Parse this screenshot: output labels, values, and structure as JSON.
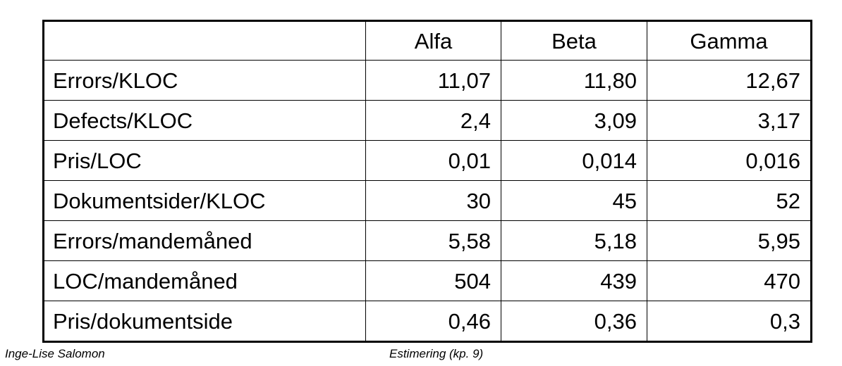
{
  "table": {
    "columns": [
      "",
      "Alfa",
      "Beta",
      "Gamma"
    ],
    "rows": [
      {
        "label": "Errors/KLOC",
        "values": [
          "11,07",
          "11,80",
          "12,67"
        ]
      },
      {
        "label": "Defects/KLOC",
        "values": [
          "2,4",
          "3,09",
          "3,17"
        ]
      },
      {
        "label": "Pris/LOC",
        "values": [
          "0,01",
          "0,014",
          "0,016"
        ]
      },
      {
        "label": "Dokumentsider/KLOC",
        "values": [
          "30",
          "45",
          "52"
        ]
      },
      {
        "label": "Errors/mandemåned",
        "values": [
          "5,58",
          "5,18",
          "5,95"
        ]
      },
      {
        "label": "LOC/mandemåned",
        "values": [
          "504",
          "439",
          "470"
        ]
      },
      {
        "label": "Pris/dokumentside",
        "values": [
          "0,46",
          "0,36",
          "0,3"
        ]
      }
    ]
  },
  "footer": {
    "author": "Inge-Lise Salomon",
    "title": "Estimering (kp. 9)"
  }
}
